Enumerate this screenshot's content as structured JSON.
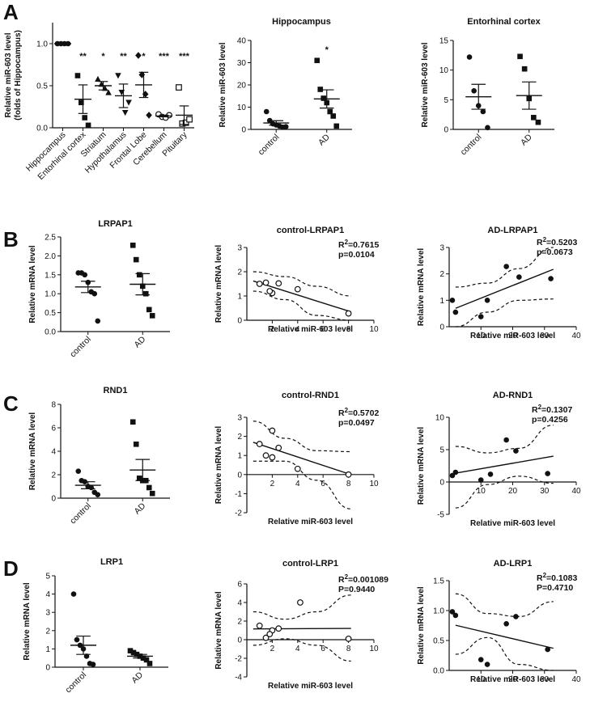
{
  "panel_letters": [
    "A",
    "B",
    "C",
    "D"
  ],
  "chart_data": [
    {
      "id": "a1",
      "type": "scatter",
      "title": "",
      "ylabel": "Relative miR-603 level (folds of Hippocampus)",
      "ylabel_lines": [
        "Relative miR-603 level",
        "(folds of Hippocampus)"
      ],
      "xlabel": "",
      "ylim": [
        0,
        1.25
      ],
      "yticks": [
        0,
        0.5,
        1.0
      ],
      "ytick_labels": [
        "0.0",
        "0.5",
        "1.0"
      ],
      "categories": [
        "Hippocampus",
        "Entorhinal cortex",
        "Striatum",
        "Hypothalamus",
        "Frontal Lobe",
        "Cerebellum",
        "Pituitary"
      ],
      "markers": [
        "circle",
        "square",
        "triangle",
        "triangle-down",
        "diamond",
        "circle-open",
        "square-open"
      ],
      "points": [
        [
          1.0,
          1.0,
          1.0,
          1.0
        ],
        [
          0.62,
          0.3,
          0.12,
          0.03
        ],
        [
          0.58,
          0.52,
          0.47,
          0.42
        ],
        [
          0.62,
          0.42,
          0.18,
          0.3
        ],
        [
          0.86,
          0.63,
          0.4,
          0.15
        ],
        [
          0.16,
          0.13,
          0.12,
          0.15
        ],
        [
          0.48,
          0.05,
          0.06,
          0.1
        ]
      ],
      "means": [
        1.0,
        0.34,
        0.5,
        0.38,
        0.51,
        0.14,
        0.15
      ],
      "sems": [
        0.0,
        0.17,
        0.05,
        0.14,
        0.15,
        0.01,
        0.11
      ],
      "significance": [
        "",
        "**",
        "*",
        "**",
        "*",
        "***",
        "***"
      ]
    },
    {
      "id": "a2",
      "type": "scatter",
      "title": "Hippocampus",
      "ylabel": "Relative miR-603 level",
      "xlabel": "",
      "ylim": [
        0,
        40
      ],
      "yticks": [
        0,
        10,
        20,
        30,
        40
      ],
      "ytick_labels": [
        "0",
        "10",
        "20",
        "30",
        "40"
      ],
      "categories": [
        "control",
        "AD"
      ],
      "markers": [
        "circle",
        "square"
      ],
      "points": [
        [
          8.0,
          4.0,
          2.5,
          2.0,
          1.5,
          1.0,
          1.2
        ],
        [
          31.0,
          18.0,
          14.0,
          12.0,
          8.0,
          6.0,
          1.5
        ]
      ],
      "means": [
        2.9,
        13.7
      ],
      "sems": [
        1.0,
        4.1
      ],
      "significance": [
        "",
        "*"
      ]
    },
    {
      "id": "a3",
      "type": "scatter",
      "title": "Entorhinal cortex",
      "ylabel": "Relative miR-603 level",
      "xlabel": "",
      "ylim": [
        0,
        15
      ],
      "yticks": [
        0,
        5,
        10,
        15
      ],
      "ytick_labels": [
        "0",
        "5",
        "10",
        "15"
      ],
      "categories": [
        "control",
        "AD"
      ],
      "markers": [
        "circle",
        "square"
      ],
      "points": [
        [
          12.2,
          6.5,
          4.0,
          3.0,
          0.3
        ],
        [
          12.3,
          10.2,
          5.2,
          2.0,
          1.2
        ]
      ],
      "means": [
        5.5,
        5.7
      ],
      "sems": [
        2.1,
        2.3
      ],
      "significance": [
        "",
        ""
      ]
    },
    {
      "id": "b1",
      "type": "scatter",
      "title": "LRPAP1",
      "ylabel": "Relative mRNA level",
      "xlabel": "",
      "ylim": [
        0,
        2.5
      ],
      "yticks": [
        0,
        0.5,
        1.0,
        1.5,
        2.0,
        2.5
      ],
      "ytick_labels": [
        "0.0",
        "0.5",
        "1.0",
        "1.5",
        "2.0",
        "2.5"
      ],
      "categories": [
        "control",
        "AD"
      ],
      "markers": [
        "circle",
        "square"
      ],
      "points": [
        [
          1.55,
          1.55,
          1.5,
          1.3,
          1.05,
          1.0,
          0.28
        ],
        [
          2.28,
          1.9,
          1.5,
          1.2,
          1.0,
          0.58,
          0.42
        ]
      ],
      "means": [
        1.18,
        1.25
      ],
      "sems": [
        0.15,
        0.28
      ],
      "significance": [
        "",
        ""
      ]
    },
    {
      "id": "b2",
      "type": "scatter",
      "title": "control-LRPAP1",
      "xlabel": "Relative miR-603 level",
      "ylabel": "Relative mRNA level",
      "r2_label": "R",
      "r2_value": "=0.7615",
      "p_label": "p=0.0104",
      "xlim": [
        0,
        10
      ],
      "ylim": [
        0,
        3
      ],
      "xticks": [
        2,
        4,
        6,
        8,
        10
      ],
      "xtick_labels": [
        "2",
        "4",
        "6",
        "8",
        "10"
      ],
      "yticks": [
        0,
        1,
        2,
        3
      ],
      "ytick_labels": [
        "0",
        "1",
        "2",
        "3"
      ],
      "marker": "circle-open",
      "x": [
        1.0,
        1.5,
        2.0,
        2.5,
        4.0,
        1.8,
        8.0
      ],
      "y": [
        1.5,
        1.55,
        1.12,
        1.52,
        1.28,
        1.2,
        0.28
      ],
      "fit": [
        1.7,
        -0.165
      ],
      "ci_top": [
        2.0,
        1.8,
        1.4,
        1.0
      ],
      "ci_bot": [
        1.2,
        0.85,
        0.2,
        -0.7
      ]
    },
    {
      "id": "b3",
      "type": "scatter",
      "title": "AD-LRPAP1",
      "xlabel": "Relative miR-603 level",
      "ylabel": "Relative mRNA level",
      "r2_label": "R",
      "r2_value": "=0.5203",
      "p_label": "p=0.0673",
      "xlim": [
        0,
        40
      ],
      "ylim": [
        0,
        3
      ],
      "xticks": [
        10,
        20,
        30,
        40
      ],
      "xtick_labels": [
        "10",
        "20",
        "30",
        "40"
      ],
      "yticks": [
        0,
        1,
        2,
        3
      ],
      "ytick_labels": [
        "0",
        "1",
        "2",
        "3"
      ],
      "marker": "circle",
      "x": [
        1.0,
        2.0,
        10.0,
        12.0,
        18.0,
        22.0,
        32.0
      ],
      "y": [
        1.0,
        0.55,
        0.38,
        1.0,
        2.28,
        1.88,
        1.82
      ],
      "fit": [
        0.6,
        0.048
      ],
      "ci_top": [
        1.5,
        1.65,
        2.2,
        3.2
      ],
      "ci_bot": [
        -0.4,
        0.55,
        1.0,
        1.05
      ]
    },
    {
      "id": "c1",
      "type": "scatter",
      "title": "RND1",
      "ylabel": "Relative mRNA level",
      "xlabel": "",
      "ylim": [
        0,
        8
      ],
      "yticks": [
        0,
        2,
        4,
        6,
        8
      ],
      "ytick_labels": [
        "0",
        "2",
        "4",
        "6",
        "8"
      ],
      "categories": [
        "control",
        "AD"
      ],
      "markers": [
        "circle",
        "square"
      ],
      "points": [
        [
          2.3,
          1.5,
          1.4,
          1.0,
          0.9,
          0.5,
          0.3
        ],
        [
          6.5,
          4.6,
          1.7,
          1.5,
          1.5,
          0.9,
          0.4
        ]
      ],
      "means": [
        1.1,
        2.4
      ],
      "sems": [
        0.3,
        0.9
      ],
      "significance": [
        "",
        ""
      ]
    },
    {
      "id": "c2",
      "type": "scatter",
      "title": "control-RND1",
      "xlabel": "Relative miR-603 level",
      "ylabel": "Relative mRNA level",
      "r2_label": "R",
      "r2_value": "=0.5702",
      "p_label": "p=0.0497",
      "xlim": [
        0,
        10
      ],
      "ylim": [
        -2,
        3
      ],
      "xticks": [
        2,
        4,
        6,
        8,
        10
      ],
      "xtick_labels": [
        "2",
        "4",
        "6",
        "8",
        "10"
      ],
      "yticks": [
        -2,
        -1,
        0,
        1,
        2,
        3
      ],
      "ytick_labels": [
        "-2",
        "-1",
        "0",
        "1",
        "2",
        "3"
      ],
      "marker": "circle-open",
      "x": [
        1.0,
        1.5,
        2.0,
        2.5,
        4.0,
        2.0,
        8.0
      ],
      "y": [
        1.6,
        1.0,
        2.3,
        1.4,
        0.3,
        0.9,
        0.0
      ],
      "fit": [
        1.8,
        -0.22
      ],
      "ci_top": [
        2.8,
        1.9,
        1.25,
        1.2
      ],
      "ci_bot": [
        0.7,
        0.7,
        -0.3,
        -1.8
      ]
    },
    {
      "id": "c3",
      "type": "scatter",
      "title": "AD-RND1",
      "xlabel": "Relative miR-603 level",
      "ylabel": "Relative mRNA level",
      "r2_label": "R",
      "r2_value": "=0.1307",
      "p_label": "p=0.4256",
      "xlim": [
        0,
        40
      ],
      "ylim": [
        -5,
        10
      ],
      "xticks": [
        10,
        20,
        30,
        40
      ],
      "xtick_labels": [
        "10",
        "20",
        "30",
        "40"
      ],
      "yticks": [
        -5,
        0,
        5,
        10
      ],
      "ytick_labels": [
        "-5",
        "0",
        "5",
        "10"
      ],
      "marker": "circle",
      "x": [
        1.0,
        2.0,
        10.0,
        13.0,
        18.0,
        21.0,
        31.0
      ],
      "y": [
        1.0,
        1.5,
        0.3,
        1.2,
        6.5,
        4.8,
        1.3
      ],
      "fit": [
        1.2,
        0.085
      ],
      "ci_top": [
        5.5,
        4.5,
        5.2,
        8.8
      ],
      "ci_bot": [
        -4.0,
        -0.4,
        0.9,
        -0.2
      ]
    },
    {
      "id": "d1",
      "type": "scatter",
      "title": "LRP1",
      "ylabel": "Relative mRNA level",
      "xlabel": "",
      "ylim": [
        0,
        5
      ],
      "yticks": [
        0,
        1,
        2,
        3,
        4,
        5
      ],
      "ytick_labels": [
        "0",
        "1",
        "2",
        "3",
        "4",
        "5"
      ],
      "categories": [
        "control",
        "AD"
      ],
      "markers": [
        "circle",
        "square"
      ],
      "points": [
        [
          4.0,
          1.5,
          1.2,
          1.0,
          0.6,
          0.2,
          0.15
        ],
        [
          0.9,
          0.8,
          0.7,
          0.6,
          0.5,
          0.4,
          0.2
        ]
      ],
      "means": [
        1.2,
        0.6
      ],
      "sems": [
        0.5,
        0.1
      ],
      "significance": [
        "",
        ""
      ]
    },
    {
      "id": "d2",
      "type": "scatter",
      "title": "control-LRP1",
      "xlabel": "Relative miR-603 level",
      "ylabel": "Relative mRNA level",
      "r2_label": "R",
      "r2_value": "=0.001089",
      "p_label": "P=0.9440",
      "xlim": [
        0,
        10
      ],
      "ylim": [
        -4,
        6
      ],
      "xticks": [
        2,
        4,
        6,
        8,
        10
      ],
      "xtick_labels": [
        "2",
        "4",
        "6",
        "8",
        "10"
      ],
      "yticks": [
        -4,
        -2,
        0,
        2,
        4,
        6
      ],
      "ytick_labels": [
        "-4",
        "-2",
        "0",
        "2",
        "4",
        "6"
      ],
      "marker": "circle-open",
      "x": [
        1.0,
        1.5,
        2.0,
        2.5,
        4.2,
        1.8,
        8.0
      ],
      "y": [
        1.5,
        0.2,
        1.0,
        1.2,
        4.0,
        0.6,
        0.1
      ],
      "fit": [
        1.15,
        0.008
      ],
      "ci_top": [
        3.0,
        2.2,
        3.0,
        4.8
      ],
      "ci_bot": [
        -0.6,
        0.1,
        -0.6,
        -2.3
      ]
    },
    {
      "id": "d3",
      "type": "scatter",
      "title": "AD-LRP1",
      "xlabel": "Relative miR-603 level",
      "ylabel": "Relative mRNA level",
      "r2_label": "R",
      "r2_value": "=0.1083",
      "p_label": "P=0.4710",
      "xlim": [
        0,
        40
      ],
      "ylim": [
        0,
        1.5
      ],
      "xticks": [
        10,
        20,
        30,
        40
      ],
      "xtick_labels": [
        "10",
        "20",
        "30",
        "40"
      ],
      "yticks": [
        0,
        0.5,
        1.0,
        1.5
      ],
      "ytick_labels": [
        "0.0",
        "0.5",
        "1.0",
        "1.5"
      ],
      "marker": "circle",
      "x": [
        1.0,
        2.0,
        10.0,
        12.0,
        18.0,
        21.0,
        31.0
      ],
      "y": [
        0.98,
        0.92,
        0.18,
        0.1,
        0.78,
        0.9,
        0.35
      ],
      "fit": [
        0.78,
        -0.0125
      ],
      "ci_top": [
        1.28,
        0.95,
        0.9,
        1.15
      ],
      "ci_bot": [
        0.27,
        0.55,
        0.1,
        -0.35
      ]
    }
  ]
}
